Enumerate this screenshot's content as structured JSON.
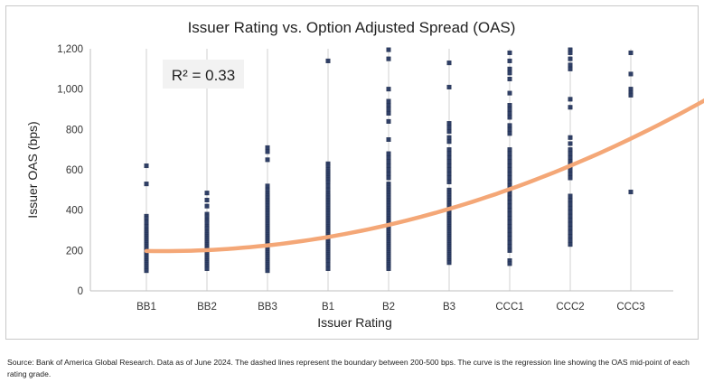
{
  "chart_data": {
    "type": "scatter",
    "title": "Issuer Rating vs. Option Adjusted Spread (OAS)",
    "xlabel": "Issuer Rating",
    "ylabel": "Issuer OAS (bps)",
    "categories": [
      "BB1",
      "BB2",
      "BB3",
      "B1",
      "B2",
      "B3",
      "CCC1",
      "CCC2",
      "CCC3"
    ],
    "ylim": [
      0,
      1200
    ],
    "yticks": [
      0,
      200,
      400,
      600,
      800,
      1000,
      1200
    ],
    "ytick_labels": [
      "0",
      "200",
      "400",
      "600",
      "800",
      "1,000",
      "1,200"
    ],
    "grid": "vertical",
    "annotation": "R² = 0.33",
    "marker_color": "#2f3f66",
    "curve_color": "#f4a777",
    "points": [
      {
        "category": "BB1",
        "values": [
          620,
          530,
          370,
          360,
          340,
          320,
          300,
          290,
          280,
          270,
          260,
          250,
          240,
          230,
          220,
          210,
          200,
          190,
          180,
          170,
          160,
          150,
          140,
          130,
          120,
          110,
          100
        ]
      },
      {
        "category": "BB2",
        "values": [
          485,
          450,
          420,
          380,
          370,
          350,
          340,
          320,
          310,
          290,
          280,
          270,
          260,
          250,
          240,
          230,
          220,
          210,
          200,
          190,
          180,
          170,
          160,
          150,
          140,
          130,
          120,
          110
        ]
      },
      {
        "category": "BB3",
        "values": [
          710,
          690,
          650,
          520,
          500,
          480,
          470,
          460,
          450,
          440,
          430,
          420,
          410,
          400,
          390,
          380,
          370,
          360,
          350,
          340,
          330,
          320,
          310,
          300,
          290,
          280,
          270,
          260,
          250,
          240,
          230,
          220,
          210,
          200,
          190,
          180,
          170,
          160,
          150,
          140,
          130,
          120,
          110,
          100
        ]
      },
      {
        "category": "B1",
        "values": [
          1140,
          630,
          620,
          600,
          590,
          580,
          570,
          560,
          550,
          540,
          520,
          500,
          480,
          470,
          460,
          450,
          440,
          430,
          420,
          410,
          400,
          390,
          380,
          370,
          360,
          350,
          340,
          330,
          320,
          310,
          300,
          290,
          280,
          270,
          260,
          250,
          240,
          230,
          220,
          210,
          200,
          190,
          180,
          170,
          160,
          150,
          130,
          110
        ]
      },
      {
        "category": "B2",
        "values": [
          1195,
          1150,
          1000,
          940,
          920,
          900,
          880,
          840,
          750,
          680,
          660,
          640,
          620,
          600,
          580,
          560,
          530,
          520,
          510,
          500,
          490,
          480,
          470,
          460,
          450,
          440,
          430,
          420,
          410,
          400,
          390,
          380,
          370,
          360,
          350,
          340,
          330,
          320,
          310,
          300,
          290,
          280,
          270,
          260,
          250,
          240,
          230,
          220,
          210,
          200,
          190,
          180,
          170,
          160,
          150,
          140,
          130,
          120,
          110
        ]
      },
      {
        "category": "B3",
        "values": [
          1130,
          1010,
          830,
          810,
          790,
          760,
          740,
          700,
          680,
          660,
          640,
          620,
          600,
          580,
          560,
          540,
          500,
          490,
          480,
          470,
          460,
          450,
          440,
          430,
          420,
          410,
          400,
          390,
          380,
          370,
          360,
          350,
          340,
          330,
          320,
          310,
          300,
          290,
          280,
          270,
          260,
          250,
          240,
          230,
          220,
          210,
          200,
          190,
          180,
          170,
          160,
          150,
          140
        ]
      },
      {
        "category": "CCC1",
        "values": [
          1180,
          1140,
          1100,
          1080,
          1050,
          980,
          920,
          900,
          880,
          860,
          820,
          800,
          780,
          700,
          680,
          660,
          640,
          620,
          600,
          580,
          560,
          540,
          520,
          500,
          480,
          460,
          440,
          420,
          400,
          380,
          360,
          340,
          320,
          300,
          280,
          260,
          240,
          220,
          200,
          150,
          135
        ]
      },
      {
        "category": "CCC2",
        "values": [
          1195,
          1180,
          1150,
          1120,
          1100,
          950,
          910,
          760,
          730,
          700,
          680,
          660,
          640,
          620,
          600,
          580,
          560,
          470,
          450,
          430,
          410,
          390,
          370,
          350,
          330,
          310,
          290,
          270,
          250,
          230
        ]
      },
      {
        "category": "CCC3",
        "values": [
          1180,
          1075,
          1000,
          980,
          970,
          490
        ]
      }
    ],
    "regression_curve": {
      "x_start": 0,
      "x_end": 9.8,
      "anchors": [
        [
          0,
          190
        ],
        [
          1,
          205
        ],
        [
          2,
          233
        ],
        [
          3,
          273
        ],
        [
          4,
          327
        ],
        [
          5,
          397
        ],
        [
          6,
          498
        ],
        [
          7,
          620
        ],
        [
          8,
          760
        ]
      ]
    }
  },
  "source_note": "Source: Bank of America Global Research. Data as of June 2024. The dashed lines represent the boundary between 200-500 bps. The curve is the regression line showing the OAS mid-point of each rating grade."
}
